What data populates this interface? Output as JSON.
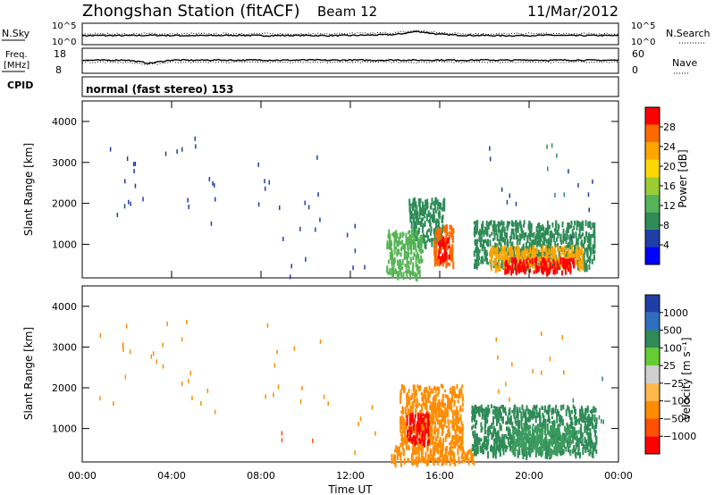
{
  "header": {
    "station": "Zhongshan Station (fitACF)",
    "beam": "Beam 12",
    "date": "11/Mar/2012"
  },
  "chart_data": [
    {
      "type": "line",
      "name": "noise-panel",
      "left_label": "N.Sky",
      "right_label": "N.Search",
      "left_ticks": [
        "10^5",
        "10^0"
      ],
      "right_ticks": [
        "10^5",
        "10^0"
      ],
      "x": [
        0,
        1,
        2,
        3,
        4,
        5,
        6,
        7,
        8,
        9,
        10,
        11,
        12,
        13,
        14,
        15,
        16,
        17,
        18,
        19,
        20,
        21,
        22,
        23,
        24
      ],
      "sky_level": [
        0.42,
        0.43,
        0.42,
        0.44,
        0.43,
        0.42,
        0.43,
        0.44,
        0.42,
        0.43,
        0.43,
        0.42,
        0.43,
        0.45,
        0.47,
        0.62,
        0.48,
        0.44,
        0.43,
        0.42,
        0.43,
        0.44,
        0.42,
        0.43,
        0.42
      ],
      "search_level": [
        0.5,
        0.51,
        0.5,
        0.52,
        0.5,
        0.51,
        0.5,
        0.52,
        0.51,
        0.5,
        0.51,
        0.5,
        0.52,
        0.53,
        0.56,
        0.66,
        0.55,
        0.52,
        0.51,
        0.5,
        0.52,
        0.51,
        0.5,
        0.51,
        0.5
      ]
    },
    {
      "type": "line",
      "name": "frequency-panel",
      "left_label_top": "Freq.",
      "left_label_bottom": "[MHz]",
      "right_label": "Nave",
      "left_ticks": [
        "18",
        "8"
      ],
      "right_ticks": [
        "60",
        "0"
      ],
      "x": [
        0,
        1,
        2,
        3,
        4,
        5,
        6,
        7,
        8,
        9,
        10,
        11,
        12,
        13,
        14,
        15,
        16,
        17,
        18,
        19,
        20,
        21,
        22,
        23,
        24
      ],
      "freq_level": [
        0.52,
        0.52,
        0.53,
        0.4,
        0.53,
        0.52,
        0.53,
        0.52,
        0.53,
        0.52,
        0.53,
        0.52,
        0.53,
        0.52,
        0.53,
        0.52,
        0.53,
        0.52,
        0.53,
        0.52,
        0.53,
        0.52,
        0.53,
        0.52,
        0.52
      ],
      "nave_level": [
        0.44,
        0.45,
        0.44,
        0.34,
        0.45,
        0.44,
        0.45,
        0.44,
        0.45,
        0.44,
        0.45,
        0.44,
        0.45,
        0.44,
        0.45,
        0.44,
        0.45,
        0.44,
        0.45,
        0.44,
        0.45,
        0.44,
        0.45,
        0.44,
        0.44
      ]
    },
    {
      "type": "table",
      "name": "cpid-strip",
      "label": "CPID",
      "text": "normal (fast stereo) 153"
    },
    {
      "type": "heatmap",
      "name": "power-panel",
      "ylabel": "Slant Range [km]",
      "yticks": [
        "4000",
        "3000",
        "2000",
        "1000"
      ],
      "ylim": [
        180,
        4500
      ],
      "xlim": [
        0,
        24
      ],
      "colorbar_label": "Power [dB]",
      "colorbar_ticks": [
        "28",
        "24",
        "20",
        "16",
        "12",
        "8",
        "4"
      ],
      "colorbar_colors": [
        "#0000ff",
        "#1f3fa6",
        "#2e8b57",
        "#55b455",
        "#9acd32",
        "#ffd700",
        "#ffa500",
        "#ff6a00",
        "#ff0000"
      ],
      "regions": [
        {
          "t0": 14.6,
          "t1": 16.2,
          "r0": 1050,
          "r1": 2150,
          "c": "#2e8b57"
        },
        {
          "t0": 15.7,
          "t1": 16.6,
          "r0": 550,
          "r1": 1500,
          "c": "#ff6a00"
        },
        {
          "t0": 15.9,
          "t1": 16.4,
          "r0": 650,
          "r1": 1200,
          "c": "#ff0000"
        },
        {
          "t0": 17.5,
          "t1": 22.9,
          "r0": 500,
          "r1": 1600,
          "c": "#2e8b57"
        },
        {
          "t0": 18.2,
          "t1": 22.4,
          "r0": 450,
          "r1": 1000,
          "c": "#ffa500"
        },
        {
          "t0": 18.8,
          "t1": 22.0,
          "r0": 350,
          "r1": 700,
          "c": "#ff0000"
        },
        {
          "t0": 13.6,
          "t1": 15.2,
          "r0": 250,
          "r1": 1400,
          "c": "#55b455"
        }
      ],
      "scatter": [
        {
          "t": 1.3,
          "r": 2550,
          "c": "#1f3fa6"
        },
        {
          "t": 2.6,
          "r": 2800,
          "c": "#1f3fa6"
        },
        {
          "t": 4.3,
          "r": 2900,
          "c": "#1f3fa6"
        },
        {
          "t": 5.2,
          "r": 2350,
          "c": "#1f3fa6"
        },
        {
          "t": 8.1,
          "r": 2700,
          "c": "#1f3fa6"
        },
        {
          "t": 9.5,
          "r": 650,
          "c": "#1f3fa6"
        },
        {
          "t": 10.2,
          "r": 2300,
          "c": "#1f3fa6"
        },
        {
          "t": 12.3,
          "r": 900,
          "c": "#1f3fa6"
        },
        {
          "t": 20.8,
          "r": 2900,
          "c": "#2e8b57"
        },
        {
          "t": 19.0,
          "r": 2500,
          "c": "#1f3fa6"
        },
        {
          "t": 22.5,
          "r": 2000,
          "c": "#1f3fa6"
        }
      ]
    },
    {
      "type": "heatmap",
      "name": "velocity-panel",
      "ylabel": "Slant Range [km]",
      "yticks": [
        "4000",
        "3000",
        "2000",
        "1000"
      ],
      "ylim": [
        180,
        4500
      ],
      "xlim": [
        0,
        24
      ],
      "xlabel": "Time UT",
      "xticks": [
        "00:00",
        "04:00",
        "08:00",
        "12:00",
        "16:00",
        "20:00",
        "00:00"
      ],
      "colorbar_label": "Velocity [m s⁻¹]",
      "colorbar_ticks": [
        "1000",
        "500",
        "100",
        "25",
        "−25",
        "−100",
        "−500",
        "−1000"
      ],
      "colorbar_colors": [
        "#ff0000",
        "#ff5000",
        "#ff8c00",
        "#ffb84d",
        "#cfcfcf",
        "#66cc33",
        "#2e8b57",
        "#2f6fbf",
        "#1f3fa6"
      ],
      "regions": [
        {
          "t0": 14.2,
          "t1": 17.0,
          "r0": 550,
          "r1": 2100,
          "c": "#ff8c00"
        },
        {
          "t0": 14.5,
          "t1": 15.5,
          "r0": 700,
          "r1": 1400,
          "c": "#ff0000"
        },
        {
          "t0": 17.4,
          "t1": 23.0,
          "r0": 400,
          "r1": 1600,
          "c": "#2e8b57"
        },
        {
          "t0": 19.2,
          "t1": 22.0,
          "r0": 450,
          "r1": 1100,
          "c": "#3d9c5e"
        },
        {
          "t0": 13.8,
          "t1": 17.5,
          "r0": 200,
          "r1": 600,
          "c": "#ff8c00"
        }
      ],
      "scatter": [
        {
          "t": 1.3,
          "r": 2550,
          "c": "#ff8c00"
        },
        {
          "t": 2.6,
          "r": 2800,
          "c": "#ff8c00"
        },
        {
          "t": 4.3,
          "r": 2900,
          "c": "#ff8c00"
        },
        {
          "t": 5.2,
          "r": 2350,
          "c": "#ff8c00"
        },
        {
          "t": 8.1,
          "r": 2700,
          "c": "#ff8c00"
        },
        {
          "t": 9.5,
          "r": 650,
          "c": "#ff5000"
        },
        {
          "t": 10.2,
          "r": 2300,
          "c": "#ff8c00"
        },
        {
          "t": 12.3,
          "r": 900,
          "c": "#ff8c00"
        },
        {
          "t": 20.8,
          "r": 2900,
          "c": "#ff8c00"
        },
        {
          "t": 19.0,
          "r": 2500,
          "c": "#ff8c00"
        },
        {
          "t": 22.5,
          "r": 2000,
          "c": "#2e8b57"
        }
      ]
    }
  ]
}
